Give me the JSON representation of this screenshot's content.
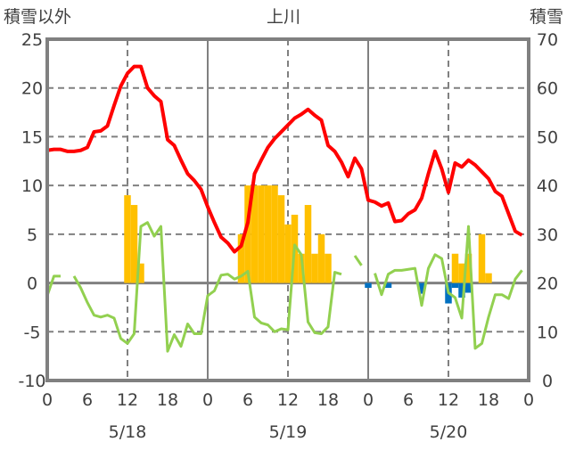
{
  "chart_data": {
    "type": "line",
    "title": "上川",
    "ylabel_left": "積雪以外",
    "ylabel_right": "積雪",
    "ylim_left": [
      -10,
      25
    ],
    "yticks_left": [
      "-10",
      "-5",
      "0",
      "5",
      "10",
      "15",
      "20",
      "25"
    ],
    "ylim_right": [
      0,
      70
    ],
    "yticks_right": [
      "0",
      "10",
      "20",
      "30",
      "40",
      "50",
      "60",
      "70"
    ],
    "xlim_hours": [
      0,
      72
    ],
    "xtick_labels": [
      "0",
      "6",
      "12",
      "18",
      "0",
      "6",
      "12",
      "18",
      "0",
      "6",
      "12",
      "18",
      "0"
    ],
    "date_labels": [
      "5/18",
      "5/19",
      "5/20"
    ],
    "grid": true,
    "colors": {
      "red": "#ff0000",
      "green": "#92d050",
      "orange": "#ffc000",
      "blue": "#0070c0",
      "axis": "#808080"
    },
    "series": [
      {
        "name": "red-line",
        "kind": "line",
        "axis": "left",
        "color": "#ff0000",
        "values": [
          13.6,
          13.7,
          13.7,
          13.5,
          13.5,
          13.6,
          13.9,
          15.5,
          15.6,
          16.1,
          18.2,
          20.2,
          21.5,
          22.2,
          22.2,
          20.0,
          19.2,
          18.6,
          14.7,
          14.1,
          12.6,
          11.2,
          10.5,
          9.6,
          7.8,
          6.2,
          4.7,
          4.1,
          3.2,
          3.8,
          6.2,
          11.2,
          12.6,
          13.9,
          14.8,
          15.5,
          16.2,
          16.9,
          17.3,
          17.8,
          17.2,
          16.7,
          14.1,
          13.5,
          12.4,
          10.9,
          12.8,
          11.7,
          8.5,
          8.3,
          7.9,
          8.2,
          6.3,
          6.4,
          7.1,
          7.5,
          8.7,
          11.2,
          13.5,
          11.7,
          9.3,
          12.3,
          11.9,
          12.6,
          12.1,
          11.4,
          10.7,
          9.4,
          8.9,
          7.1,
          5.3,
          4.9
        ]
      },
      {
        "name": "green-line",
        "kind": "line",
        "axis": "left",
        "color": "#92d050",
        "values": [
          -1.3,
          0.7,
          0.7,
          null,
          0.7,
          -0.5,
          -2.0,
          -3.3,
          -3.5,
          -3.3,
          -3.6,
          -5.7,
          -6.2,
          -5.2,
          5.8,
          6.2,
          4.8,
          5.8,
          -7.0,
          -5.3,
          -6.5,
          -4.2,
          -5.2,
          -5.2,
          -1.3,
          -0.8,
          0.8,
          0.9,
          0.4,
          0.7,
          1.2,
          -3.5,
          -4.1,
          -4.3,
          -5.0,
          -4.7,
          -4.8,
          3.9,
          2.9,
          -4.0,
          -5.1,
          -5.2,
          -4.5,
          1.1,
          0.9,
          null,
          2.8,
          1.8,
          null,
          1.0,
          -1.2,
          0.9,
          1.3,
          1.3,
          1.4,
          1.5,
          -2.3,
          1.5,
          2.9,
          2.5,
          -1.0,
          -1.5,
          -3.6,
          5.8,
          -6.7,
          -6.2,
          -3.5,
          -1.2,
          -1.2,
          -1.6,
          0.4,
          1.3
        ]
      },
      {
        "name": "orange-bars",
        "kind": "bar",
        "axis": "left",
        "color": "#ffc000",
        "points": [
          [
            12,
            9
          ],
          [
            13,
            8
          ],
          [
            14,
            2
          ],
          [
            29,
            5
          ],
          [
            30,
            10
          ],
          [
            31,
            10
          ],
          [
            32,
            10
          ],
          [
            33,
            10
          ],
          [
            34,
            10
          ],
          [
            35,
            9
          ],
          [
            36,
            6
          ],
          [
            37,
            7
          ],
          [
            38,
            3
          ],
          [
            39,
            8
          ],
          [
            40,
            3
          ],
          [
            41,
            5
          ],
          [
            42,
            3
          ],
          [
            61,
            3
          ],
          [
            62,
            2
          ],
          [
            63,
            3
          ],
          [
            65,
            5
          ],
          [
            66,
            1
          ]
        ]
      },
      {
        "name": "blue-bars",
        "kind": "bar",
        "axis": "left",
        "color": "#0070c0",
        "points": [
          [
            48,
            -0.5
          ],
          [
            51,
            -0.5
          ],
          [
            56,
            -1.1
          ],
          [
            60,
            -2.1
          ],
          [
            61,
            -0.5
          ],
          [
            62,
            -1.5
          ],
          [
            63,
            -1.0
          ]
        ]
      }
    ]
  }
}
